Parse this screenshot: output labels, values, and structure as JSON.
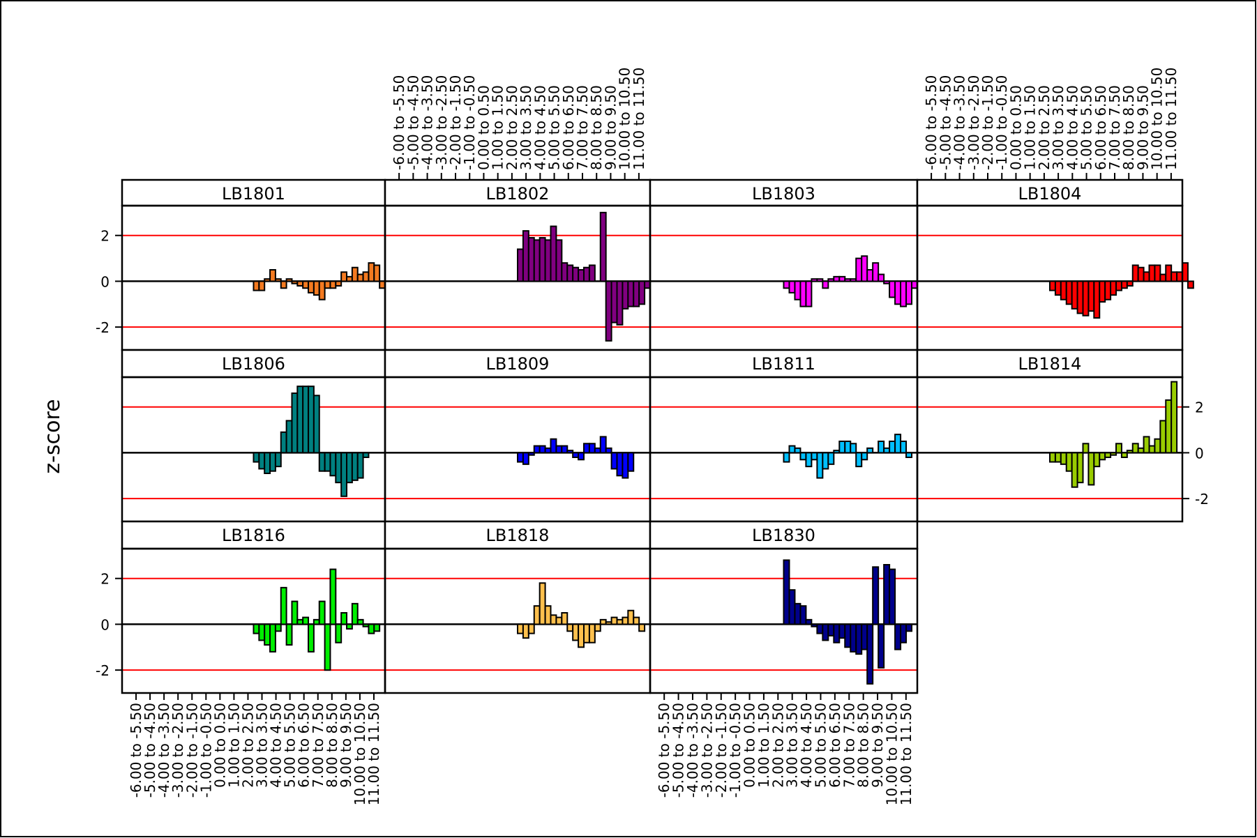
{
  "chart_data": {
    "type": "bar",
    "ylabel": "z-score",
    "ylim": [
      -3.0,
      3.3
    ],
    "reference_lines": [
      {
        "y": 2,
        "color": "#ff0000"
      },
      {
        "y": 0,
        "color": "#000000"
      },
      {
        "y": -2,
        "color": "#ff0000"
      }
    ],
    "y_ticks": [
      "2",
      "0",
      "-2"
    ],
    "y_tick_values": [
      2,
      0,
      -2
    ],
    "categories": [
      "-6.00 to -5.50",
      "-5.00 to -4.50",
      "-4.00 to -3.50",
      "-3.00 to -2.50",
      "-2.00 to -1.50",
      "-1.00 to -0.50",
      "0.00 to 0.50",
      "1.00 to 1.50",
      "2.00 to 2.50",
      "3.00 to 3.50",
      "4.00 to 4.50",
      "5.00 to 5.50",
      "6.00 to 6.50",
      "7.00 to 7.50",
      "8.00 to 8.50",
      "9.00 to 9.50",
      "10.00 to 10.50",
      "11.00 to 11.50"
    ],
    "panels": [
      {
        "name": "LB1801",
        "color": "#f47a20",
        "values": [
          0,
          0,
          0,
          0,
          0,
          0,
          0,
          0,
          0,
          0,
          0,
          0,
          0,
          0,
          0,
          0,
          0,
          0,
          0,
          0,
          0,
          0,
          0,
          0,
          -0.4,
          -0.4,
          0.1,
          0.5,
          0.1,
          -0.3,
          0.1,
          -0.1,
          -0.2,
          -0.3,
          -0.5,
          -0.6,
          -0.8,
          -0.3,
          -0.3,
          -0.2,
          0.4,
          0.2,
          0.6,
          0.3,
          0.4,
          0.8,
          0.7,
          -0.3
        ]
      },
      {
        "name": "LB1802",
        "color": "#800080",
        "values": [
          0,
          0,
          0,
          0,
          0,
          0,
          0,
          0,
          0,
          0,
          0,
          0,
          0,
          0,
          0,
          0,
          0,
          0,
          0,
          0,
          0,
          0,
          0,
          0,
          1.4,
          2.2,
          1.9,
          1.8,
          1.9,
          1.8,
          2.4,
          1.8,
          0.8,
          0.7,
          0.6,
          0.5,
          0.6,
          0.7,
          0,
          3.0,
          -2.6,
          -1.8,
          -1.9,
          -1.2,
          -1.1,
          -1.1,
          -1.0,
          -0.3
        ]
      },
      {
        "name": "LB1803",
        "color": "#ff00ff",
        "values": [
          0,
          0,
          0,
          0,
          0,
          0,
          0,
          0,
          0,
          0,
          0,
          0,
          0,
          0,
          0,
          0,
          0,
          0,
          0,
          0,
          0,
          0,
          0,
          0,
          -0.3,
          -0.5,
          -0.8,
          -1.1,
          -1.1,
          0.1,
          0.1,
          -0.3,
          0.1,
          0.2,
          0.2,
          0.1,
          0.1,
          1.0,
          1.1,
          0.5,
          0.8,
          0.3,
          -0.1,
          -0.7,
          -1.0,
          -1.1,
          -1.0,
          -0.3
        ]
      },
      {
        "name": "LB1804",
        "color": "#ff0000",
        "values": [
          0,
          0,
          0,
          0,
          0,
          0,
          0,
          0,
          0,
          0,
          0,
          0,
          0,
          0,
          0,
          0,
          0,
          0,
          0,
          0,
          0,
          0,
          0,
          0,
          -0.4,
          -0.6,
          -0.8,
          -1.0,
          -1.2,
          -1.4,
          -1.5,
          -1.3,
          -1.6,
          -0.9,
          -0.8,
          -0.6,
          -0.4,
          -0.3,
          -0.2,
          0.7,
          0.6,
          0.4,
          0.7,
          0.7,
          0.3,
          0.7,
          0.4,
          0.4,
          0.8,
          -0.3
        ]
      },
      {
        "name": "LB1806",
        "color": "#008080",
        "values": [
          0,
          0,
          0,
          0,
          0,
          0,
          0,
          0,
          0,
          0,
          0,
          0,
          0,
          0,
          0,
          0,
          0,
          0,
          0,
          0,
          0,
          0,
          0,
          0,
          -0.4,
          -0.7,
          -0.9,
          -0.8,
          -0.6,
          0.9,
          1.4,
          2.6,
          2.9,
          2.9,
          2.9,
          2.5,
          -0.8,
          -0.8,
          -1.0,
          -1.3,
          -1.9,
          -1.3,
          -1.2,
          -1.1,
          -0.2
        ]
      },
      {
        "name": "LB1809",
        "color": "#0000ff",
        "values": [
          0,
          0,
          0,
          0,
          0,
          0,
          0,
          0,
          0,
          0,
          0,
          0,
          0,
          0,
          0,
          0,
          0,
          0,
          0,
          0,
          0,
          0,
          0,
          0,
          -0.4,
          -0.5,
          -0.1,
          0.3,
          0.3,
          0.2,
          0.6,
          0.3,
          0.3,
          0.1,
          -0.2,
          -0.3,
          0.4,
          0.4,
          0.2,
          0.7,
          0.2,
          -0.7,
          -1.0,
          -1.1,
          -0.8
        ]
      },
      {
        "name": "LB1811",
        "color": "#00bfff",
        "values": [
          0,
          0,
          0,
          0,
          0,
          0,
          0,
          0,
          0,
          0,
          0,
          0,
          0,
          0,
          0,
          0,
          0,
          0,
          0,
          0,
          0,
          0,
          0,
          0,
          -0.4,
          0.3,
          0.2,
          -0.3,
          -0.6,
          -0.3,
          -1.1,
          -0.7,
          -0.5,
          0.1,
          0.5,
          0.5,
          0.4,
          -0.6,
          -0.3,
          0.2,
          0,
          0.5,
          0.2,
          0.5,
          0.8,
          0.5,
          -0.2
        ]
      },
      {
        "name": "LB1814",
        "color": "#99cc00",
        "values": [
          0,
          0,
          0,
          0,
          0,
          0,
          0,
          0,
          0,
          0,
          0,
          0,
          0,
          0,
          0,
          0,
          0,
          0,
          0,
          0,
          0,
          0,
          0,
          0,
          -0.4,
          -0.4,
          -0.5,
          -0.8,
          -1.5,
          -1.3,
          0.4,
          -1.4,
          -0.6,
          -0.3,
          -0.2,
          -0.1,
          0.4,
          -0.2,
          0.1,
          0.4,
          0.2,
          0.7,
          0.3,
          0.6,
          1.4,
          2.3,
          3.1
        ]
      },
      {
        "name": "LB1816",
        "color": "#00ee00",
        "values": [
          0,
          0,
          0,
          0,
          0,
          0,
          0,
          0,
          0,
          0,
          0,
          0,
          0,
          0,
          0,
          0,
          0,
          0,
          0,
          0,
          0,
          0,
          0,
          0,
          -0.4,
          -0.7,
          -0.9,
          -1.2,
          -0.3,
          1.6,
          -0.9,
          1.0,
          0.2,
          0.3,
          -1.2,
          0.2,
          1.0,
          -2.0,
          2.4,
          -0.8,
          0.5,
          -0.2,
          0.9,
          0.2,
          -0.1,
          -0.4,
          -0.3
        ]
      },
      {
        "name": "LB1818",
        "color": "#ffc04d",
        "values": [
          0,
          0,
          0,
          0,
          0,
          0,
          0,
          0,
          0,
          0,
          0,
          0,
          0,
          0,
          0,
          0,
          0,
          0,
          0,
          0,
          0,
          0,
          0,
          0,
          -0.4,
          -0.6,
          -0.4,
          0.8,
          1.8,
          0.8,
          0.4,
          0.3,
          0.5,
          -0.3,
          -0.7,
          -1.0,
          -0.8,
          -0.8,
          -0.3,
          0.2,
          0.1,
          0.3,
          0.2,
          0.3,
          0.6,
          0.3,
          -0.3
        ]
      },
      {
        "name": "LB1830",
        "color": "#00008b",
        "values": [
          0,
          0,
          0,
          0,
          0,
          0,
          0,
          0,
          0,
          0,
          0,
          0,
          0,
          0,
          0,
          0,
          0,
          0,
          0,
          0,
          0,
          0,
          0,
          0,
          2.8,
          1.5,
          0.9,
          0.8,
          0.2,
          -0.1,
          -0.4,
          -0.7,
          -0.5,
          -0.8,
          -0.6,
          -1.0,
          -1.2,
          -1.3,
          -1.1,
          -2.6,
          2.5,
          -1.9,
          2.6,
          2.4,
          -1.1,
          -0.8,
          -0.3
        ]
      }
    ],
    "grid": false,
    "legend": "none"
  }
}
